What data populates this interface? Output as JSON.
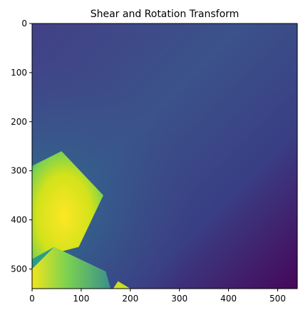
{
  "chart_data": {
    "type": "heatmap",
    "title": "Shear and Rotation Transform",
    "xlabel": "",
    "ylabel": "",
    "xlim": [
      0,
      540
    ],
    "ylim": [
      540,
      0
    ],
    "xticks": [
      0,
      100,
      200,
      300,
      400,
      500
    ],
    "yticks": [
      0,
      100,
      200,
      300,
      400,
      500
    ],
    "colormap": "viridis",
    "grid": false,
    "colors": {
      "background": "#3f4788",
      "low": "#440154",
      "mid": "#2f6b8e",
      "teal": "#21918c",
      "green": "#5ec962",
      "high": "#fde725",
      "axes": "#000000"
    },
    "regions": [
      {
        "name": "bright-bottom-left-region",
        "polygon": [
          [
            0,
            290
          ],
          [
            60,
            260
          ],
          [
            145,
            350
          ],
          [
            95,
            455
          ],
          [
            0,
            480
          ]
        ],
        "value": "high"
      },
      {
        "name": "left-strip-region",
        "polygon": [
          [
            0,
            480
          ],
          [
            45,
            455
          ],
          [
            0,
            520
          ]
        ],
        "value": "teal"
      },
      {
        "name": "bottom-triangle-region",
        "polygon": [
          [
            45,
            455
          ],
          [
            0,
            500
          ],
          [
            0,
            540
          ],
          [
            160,
            540
          ],
          [
            150,
            505
          ]
        ],
        "value": "green"
      },
      {
        "name": "bottom-small-triangle-region",
        "polygon": [
          [
            175,
            525
          ],
          [
            165,
            540
          ],
          [
            200,
            540
          ]
        ],
        "value": "high"
      }
    ]
  }
}
